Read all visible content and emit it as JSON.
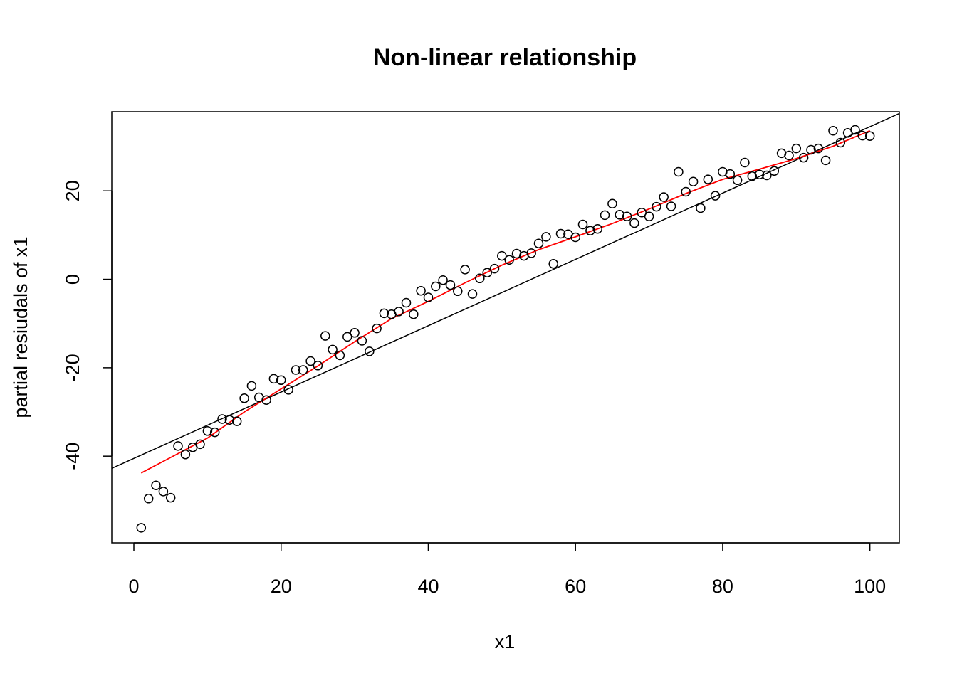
{
  "chart_data": {
    "type": "scatter",
    "title": "Non-linear relationship",
    "xlabel": "x1",
    "ylabel": "partial resiudals of x1",
    "xlim": [
      -3,
      104
    ],
    "ylim": [
      -59.6,
      37.9
    ],
    "xticks": [
      0,
      20,
      40,
      60,
      80,
      100
    ],
    "yticks": [
      -40,
      -20,
      0,
      20
    ],
    "xtick_labels": [
      "0",
      "20",
      "40",
      "60",
      "80",
      "100"
    ],
    "ytick_labels": [
      "-40",
      "-20",
      "0",
      "20"
    ],
    "grid": false,
    "colors": {
      "points": "#000000",
      "fit_line": "#000000",
      "smooth_line": "#ff0000"
    },
    "points": {
      "x": [
        1,
        2,
        3,
        4,
        5,
        6,
        7,
        8,
        9,
        10,
        11,
        12,
        13,
        14,
        15,
        16,
        17,
        18,
        19,
        20,
        21,
        22,
        23,
        24,
        25,
        26,
        27,
        28,
        29,
        30,
        31,
        32,
        33,
        34,
        35,
        36,
        37,
        38,
        39,
        40,
        41,
        42,
        43,
        44,
        45,
        46,
        47,
        48,
        49,
        50,
        51,
        52,
        53,
        54,
        55,
        56,
        57,
        58,
        59,
        60,
        61,
        62,
        63,
        64,
        65,
        66,
        67,
        68,
        69,
        70,
        71,
        72,
        73,
        74,
        75,
        76,
        77,
        78,
        79,
        80,
        81,
        82,
        83,
        84,
        85,
        86,
        87,
        88,
        89,
        90,
        91,
        92,
        93,
        94,
        95,
        96,
        97,
        98,
        99,
        100
      ],
      "y": [
        -56.2,
        -49.6,
        -46.6,
        -48.0,
        -49.4,
        -37.7,
        -39.6,
        -38.0,
        -37.3,
        -34.3,
        -34.6,
        -31.6,
        -31.8,
        -32.1,
        -26.9,
        -24.1,
        -26.7,
        -27.3,
        -22.5,
        -22.8,
        -25.0,
        -20.5,
        -20.5,
        -18.5,
        -19.5,
        -12.8,
        -15.9,
        -17.2,
        -13.0,
        -12.1,
        -13.9,
        -16.3,
        -11.1,
        -7.7,
        -7.9,
        -7.3,
        -5.3,
        -7.9,
        -2.6,
        -4.1,
        -1.6,
        -0.2,
        -1.3,
        -2.7,
        2.2,
        -3.3,
        0.2,
        1.5,
        2.4,
        5.3,
        4.4,
        5.8,
        5.3,
        5.9,
        8.1,
        9.6,
        3.5,
        10.3,
        10.2,
        9.5,
        12.4,
        11.0,
        11.4,
        14.5,
        17.1,
        14.6,
        14.2,
        12.7,
        15.1,
        14.2,
        16.4,
        18.6,
        16.5,
        24.3,
        19.8,
        22.1,
        16.1,
        22.6,
        18.9,
        24.3,
        23.8,
        22.4,
        26.4,
        23.3,
        23.7,
        23.5,
        24.5,
        28.5,
        28.0,
        29.6,
        27.5,
        29.3,
        29.6,
        26.9,
        33.6,
        30.9,
        33.1,
        33.8,
        32.5,
        32.4
      ]
    },
    "fit_line": {
      "intercept": -40.5,
      "slope": 0.75
    },
    "smooth_line": {
      "x": [
        1,
        5,
        10,
        15,
        20,
        25,
        30,
        35,
        40,
        45,
        50,
        55,
        60,
        65,
        70,
        75,
        80,
        85,
        90,
        95,
        100
      ],
      "y": [
        -43.8,
        -40.3,
        -35.9,
        -30.0,
        -24.8,
        -19.6,
        -14.1,
        -8.9,
        -5.0,
        -0.8,
        3.2,
        6.7,
        9.6,
        12.6,
        15.9,
        19.4,
        22.6,
        24.9,
        27.3,
        30.1,
        33.6
      ]
    }
  }
}
